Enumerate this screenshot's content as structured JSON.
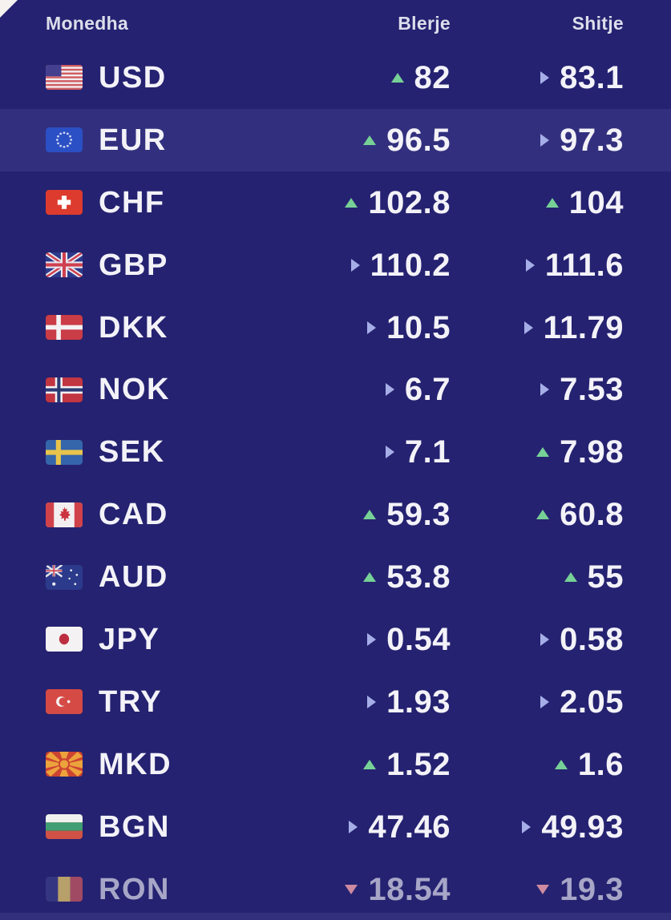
{
  "table": {
    "columns": {
      "currency": "Monedha",
      "buy": "Blerje",
      "sell": "Shitje"
    },
    "rows": [
      {
        "code": "USD",
        "flag_icon": "usd-flag-icon",
        "buy": {
          "trend": "up",
          "value": "82"
        },
        "sell": {
          "trend": "flat",
          "value": "83.1"
        },
        "highlighted": false,
        "muted": false
      },
      {
        "code": "EUR",
        "flag_icon": "eur-flag-icon",
        "buy": {
          "trend": "up",
          "value": "96.5"
        },
        "sell": {
          "trend": "flat",
          "value": "97.3"
        },
        "highlighted": true,
        "muted": false
      },
      {
        "code": "CHF",
        "flag_icon": "chf-flag-icon",
        "buy": {
          "trend": "up",
          "value": "102.8"
        },
        "sell": {
          "trend": "up",
          "value": "104"
        },
        "highlighted": false,
        "muted": false
      },
      {
        "code": "GBP",
        "flag_icon": "gbp-flag-icon",
        "buy": {
          "trend": "flat",
          "value": "110.2"
        },
        "sell": {
          "trend": "flat",
          "value": "111.6"
        },
        "highlighted": false,
        "muted": false
      },
      {
        "code": "DKK",
        "flag_icon": "dkk-flag-icon",
        "buy": {
          "trend": "flat",
          "value": "10.5"
        },
        "sell": {
          "trend": "flat",
          "value": "11.79"
        },
        "highlighted": false,
        "muted": false
      },
      {
        "code": "NOK",
        "flag_icon": "nok-flag-icon",
        "buy": {
          "trend": "flat",
          "value": "6.7"
        },
        "sell": {
          "trend": "flat",
          "value": "7.53"
        },
        "highlighted": false,
        "muted": false
      },
      {
        "code": "SEK",
        "flag_icon": "sek-flag-icon",
        "buy": {
          "trend": "flat",
          "value": "7.1"
        },
        "sell": {
          "trend": "up",
          "value": "7.98"
        },
        "highlighted": false,
        "muted": false
      },
      {
        "code": "CAD",
        "flag_icon": "cad-flag-icon",
        "buy": {
          "trend": "up",
          "value": "59.3"
        },
        "sell": {
          "trend": "up",
          "value": "60.8"
        },
        "highlighted": false,
        "muted": false
      },
      {
        "code": "AUD",
        "flag_icon": "aud-flag-icon",
        "buy": {
          "trend": "up",
          "value": "53.8"
        },
        "sell": {
          "trend": "up",
          "value": "55"
        },
        "highlighted": false,
        "muted": false
      },
      {
        "code": "JPY",
        "flag_icon": "jpy-flag-icon",
        "buy": {
          "trend": "flat",
          "value": "0.54"
        },
        "sell": {
          "trend": "flat",
          "value": "0.58"
        },
        "highlighted": false,
        "muted": false
      },
      {
        "code": "TRY",
        "flag_icon": "try-flag-icon",
        "buy": {
          "trend": "flat",
          "value": "1.93"
        },
        "sell": {
          "trend": "flat",
          "value": "2.05"
        },
        "highlighted": false,
        "muted": false
      },
      {
        "code": "MKD",
        "flag_icon": "mkd-flag-icon",
        "buy": {
          "trend": "up",
          "value": "1.52"
        },
        "sell": {
          "trend": "up",
          "value": "1.6"
        },
        "highlighted": false,
        "muted": false
      },
      {
        "code": "BGN",
        "flag_icon": "bgn-flag-icon",
        "buy": {
          "trend": "flat",
          "value": "47.46"
        },
        "sell": {
          "trend": "flat",
          "value": "49.93"
        },
        "highlighted": false,
        "muted": false
      },
      {
        "code": "RON",
        "flag_icon": "ron-flag-icon",
        "buy": {
          "trend": "down",
          "value": "18.54"
        },
        "sell": {
          "trend": "down",
          "value": "19.3"
        },
        "highlighted": false,
        "muted": true
      }
    ]
  },
  "colors": {
    "background": "#252271",
    "row_highlight": "#32307e",
    "text": "#f3f2f8",
    "header_text": "#dcdeeb",
    "muted_text": "#a7a6c7",
    "trend_up": "#77d196",
    "trend_flat": "#a6aee8",
    "trend_down": "#e0899d"
  }
}
